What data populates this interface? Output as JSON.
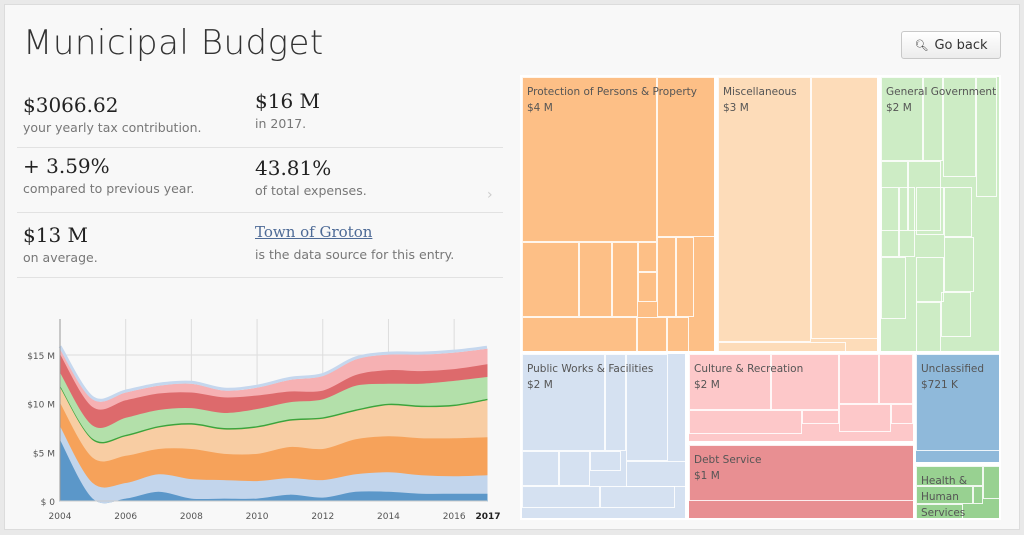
{
  "header": {
    "title": "Municipal Budget",
    "back_label": "Go back",
    "back_icon": "magnifier-icon"
  },
  "stats": {
    "tax": {
      "value": "$3066.62",
      "caption": "your yearly tax contribution."
    },
    "total": {
      "value": "$16 M",
      "caption": "in 2017."
    },
    "change": {
      "value": "+ 3.59%",
      "caption": "compared to previous year."
    },
    "share": {
      "value": "43.81%",
      "caption": "of total expenses."
    },
    "average": {
      "value": "$13 M",
      "caption": "on average."
    },
    "source": {
      "link": "Town of Groton",
      "caption": "is the data source for this entry."
    }
  },
  "chart_data": {
    "type": "area",
    "stacked": true,
    "x": [
      2004,
      2005,
      2006,
      2007,
      2008,
      2009,
      2010,
      2011,
      2012,
      2013,
      2014,
      2015,
      2016,
      2017
    ],
    "xticks": [
      "2004",
      "2006",
      "2008",
      "2010",
      "2012",
      "2014",
      "2016",
      "2017"
    ],
    "yticks": [
      "$ 0",
      "$5 M",
      "$10 M",
      "$15 M"
    ],
    "ylim": [
      0,
      18
    ],
    "grid": true,
    "series": [
      {
        "color": "#5b97c9",
        "values": [
          6.4,
          0.3,
          0.3,
          1.0,
          0.3,
          0.3,
          0.3,
          0.7,
          0.4,
          1.0,
          1.0,
          0.8,
          0.8,
          0.8
        ]
      },
      {
        "color": "#c2d5ec",
        "values": [
          1.4,
          1.6,
          1.6,
          1.8,
          2.0,
          1.9,
          1.8,
          1.7,
          1.8,
          1.8,
          2.0,
          1.9,
          1.8,
          1.9
        ]
      },
      {
        "color": "#f6a25a",
        "values": [
          2.4,
          2.6,
          2.8,
          2.6,
          3.1,
          2.7,
          2.8,
          3.2,
          3.2,
          3.6,
          3.7,
          3.8,
          3.9,
          3.9
        ]
      },
      {
        "color": "#f8cda3",
        "values": [
          1.6,
          1.8,
          2.0,
          2.2,
          2.5,
          2.5,
          2.7,
          2.7,
          3.1,
          2.9,
          3.2,
          3.2,
          3.3,
          3.8
        ]
      },
      {
        "color": "#3ca43c",
        "values": [
          0.15,
          0.15,
          0.15,
          0.15,
          0.15,
          0.15,
          0.15,
          0.15,
          0.15,
          0.15,
          0.15,
          0.15,
          0.15,
          0.15
        ]
      },
      {
        "color": "#b3e0aa",
        "values": [
          1.35,
          1.35,
          1.75,
          1.65,
          1.55,
          1.55,
          1.75,
          1.75,
          1.85,
          2.45,
          2.05,
          2.25,
          2.45,
          2.25
        ]
      },
      {
        "color": "#dd6a6c",
        "values": [
          1.9,
          1.9,
          1.8,
          1.7,
          1.6,
          1.6,
          1.4,
          1.1,
          0.9,
          1.1,
          1.4,
          1.3,
          1.2,
          1.3
        ]
      },
      {
        "color": "#f6b1b3",
        "values": [
          0.5,
          0.7,
          0.7,
          0.7,
          0.8,
          0.6,
          0.7,
          1.1,
          1.4,
          1.5,
          1.5,
          1.6,
          1.6,
          1.5
        ]
      }
    ]
  },
  "treemap": [
    {
      "label": "Protection of Persons & Property",
      "value": "$4 M",
      "color": "#fdbf86"
    },
    {
      "label": "Miscellaneous",
      "value": "$3 M",
      "color": "#fddcb9"
    },
    {
      "label": "General Government",
      "value": "$2 M",
      "color": "#cdecc5"
    },
    {
      "label": "Public Works & Facilities",
      "value": "$2 M",
      "color": "#d5e1f1"
    },
    {
      "label": "Culture & Recreation",
      "value": "$2 M",
      "color": "#fdc8c9"
    },
    {
      "label": "Debt Service",
      "value": "$1 M",
      "color": "#e88f92"
    },
    {
      "label": "Unclassified",
      "value": "$721 K",
      "color": "#8fb9da"
    },
    {
      "label": "Health & Human Services",
      "value": "",
      "color": "#98d191"
    }
  ]
}
